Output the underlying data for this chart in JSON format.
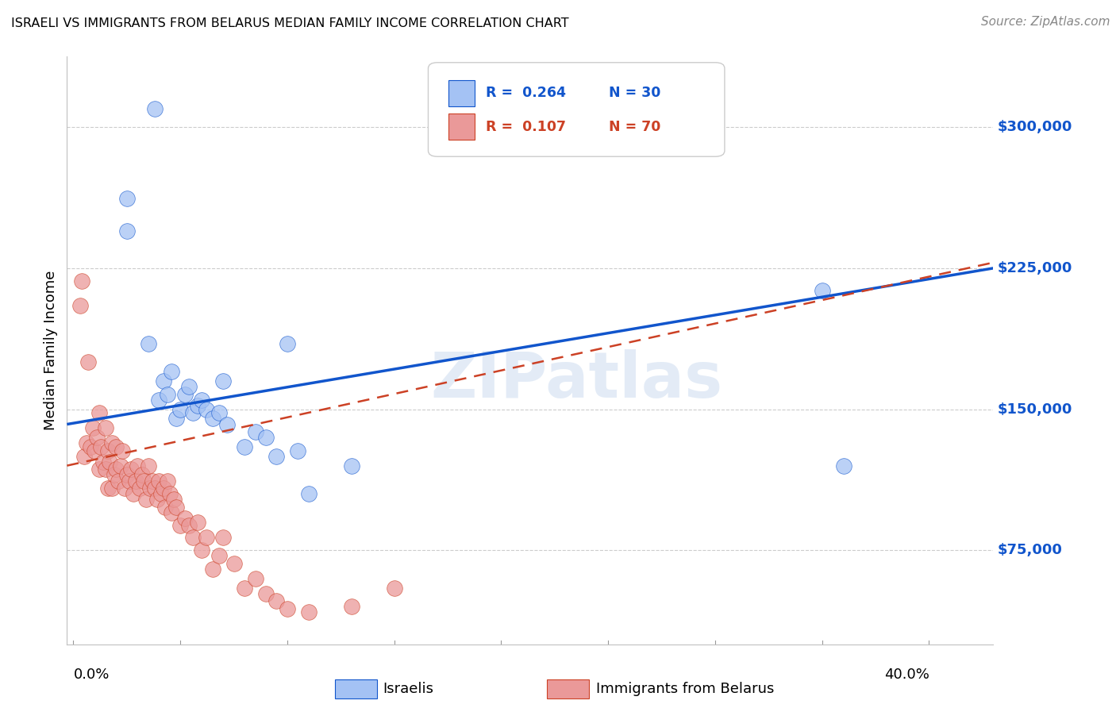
{
  "title": "ISRAELI VS IMMIGRANTS FROM BELARUS MEDIAN FAMILY INCOME CORRELATION CHART",
  "source": "Source: ZipAtlas.com",
  "ylabel": "Median Family Income",
  "legend_blue_R": "0.264",
  "legend_blue_N": "30",
  "legend_pink_R": "0.107",
  "legend_pink_N": "70",
  "watermark": "ZIPatlas",
  "ytick_labels": [
    "$75,000",
    "$150,000",
    "$225,000",
    "$300,000"
  ],
  "ytick_values": [
    75000,
    150000,
    225000,
    300000
  ],
  "y_min": 25000,
  "y_max": 337500,
  "x_min": -0.003,
  "x_max": 0.43,
  "blue_fill": "#a4c2f4",
  "pink_fill": "#ea9999",
  "blue_edge": "#1155cc",
  "pink_edge": "#cc4125",
  "blue_line": "#1155cc",
  "pink_line": "#cc4125",
  "right_label_color": "#1155cc",
  "grid_color": "#cccccc",
  "israelis_x": [
    0.025,
    0.025,
    0.035,
    0.038,
    0.04,
    0.042,
    0.044,
    0.046,
    0.048,
    0.05,
    0.052,
    0.054,
    0.056,
    0.058,
    0.06,
    0.062,
    0.065,
    0.068,
    0.07,
    0.072,
    0.08,
    0.085,
    0.09,
    0.095,
    0.1,
    0.105,
    0.11,
    0.13,
    0.35,
    0.36
  ],
  "israelis_y": [
    262000,
    245000,
    185000,
    310000,
    155000,
    165000,
    158000,
    170000,
    145000,
    150000,
    158000,
    162000,
    148000,
    152000,
    155000,
    150000,
    145000,
    148000,
    165000,
    142000,
    130000,
    138000,
    135000,
    125000,
    185000,
    128000,
    105000,
    120000,
    213000,
    120000
  ],
  "belarus_x": [
    0.003,
    0.004,
    0.005,
    0.006,
    0.007,
    0.008,
    0.009,
    0.01,
    0.011,
    0.012,
    0.012,
    0.013,
    0.014,
    0.015,
    0.015,
    0.016,
    0.016,
    0.017,
    0.018,
    0.018,
    0.019,
    0.02,
    0.02,
    0.021,
    0.022,
    0.023,
    0.024,
    0.025,
    0.026,
    0.027,
    0.028,
    0.029,
    0.03,
    0.031,
    0.032,
    0.033,
    0.034,
    0.035,
    0.036,
    0.037,
    0.038,
    0.039,
    0.04,
    0.041,
    0.042,
    0.043,
    0.044,
    0.045,
    0.046,
    0.047,
    0.048,
    0.05,
    0.052,
    0.054,
    0.056,
    0.058,
    0.06,
    0.062,
    0.065,
    0.068,
    0.07,
    0.075,
    0.08,
    0.085,
    0.09,
    0.095,
    0.1,
    0.11,
    0.13,
    0.15
  ],
  "belarus_y": [
    205000,
    218000,
    125000,
    132000,
    175000,
    130000,
    140000,
    128000,
    135000,
    148000,
    118000,
    130000,
    122000,
    140000,
    118000,
    128000,
    108000,
    122000,
    132000,
    108000,
    115000,
    130000,
    118000,
    112000,
    120000,
    128000,
    108000,
    115000,
    112000,
    118000,
    105000,
    112000,
    120000,
    108000,
    115000,
    112000,
    102000,
    120000,
    108000,
    112000,
    108000,
    102000,
    112000,
    105000,
    108000,
    98000,
    112000,
    105000,
    95000,
    102000,
    98000,
    88000,
    92000,
    88000,
    82000,
    90000,
    75000,
    82000,
    65000,
    72000,
    82000,
    68000,
    55000,
    60000,
    52000,
    48000,
    44000,
    42000,
    45000,
    55000
  ]
}
